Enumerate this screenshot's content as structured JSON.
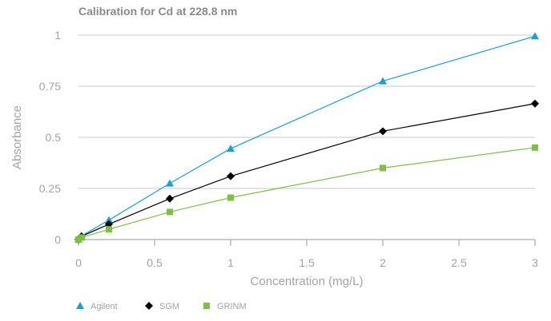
{
  "chart_data": {
    "type": "line",
    "title": "Calibration for Cd at 228.8 nm",
    "xlabel": "Concentration (mg/L)",
    "ylabel": "Absorbance",
    "xlim": [
      0,
      3
    ],
    "ylim": [
      0,
      1
    ],
    "x_ticks": [
      0,
      0.5,
      1,
      1.5,
      2,
      2.5,
      3
    ],
    "x_tick_labels": [
      "0",
      "0.5",
      "1",
      "1.5",
      "2",
      "2.5",
      "3"
    ],
    "y_ticks": [
      0,
      0.25,
      0.5,
      0.75,
      1
    ],
    "y_tick_labels": [
      "0",
      "0.25",
      "0.5",
      "0.75",
      "1"
    ],
    "grid": "horizontal",
    "legend_position": "bottom-left",
    "series": [
      {
        "name": "Agilent",
        "color": "#1a9fd9",
        "marker": "triangle",
        "x": [
          0,
          0.02,
          0.2,
          0.6,
          1,
          2,
          3
        ],
        "y": [
          0,
          0.018,
          0.095,
          0.275,
          0.445,
          0.775,
          0.995
        ]
      },
      {
        "name": "SGM",
        "color": "#000000",
        "marker": "diamond",
        "x": [
          0,
          0.02,
          0.2,
          0.6,
          1,
          2,
          3
        ],
        "y": [
          0,
          0.016,
          0.075,
          0.2,
          0.31,
          0.53,
          0.665
        ]
      },
      {
        "name": "GRINM",
        "color": "#7dc142",
        "marker": "square",
        "x": [
          0,
          0.02,
          0.2,
          0.6,
          1,
          2,
          3
        ],
        "y": [
          0,
          0.01,
          0.05,
          0.135,
          0.205,
          0.35,
          0.45
        ]
      }
    ]
  }
}
